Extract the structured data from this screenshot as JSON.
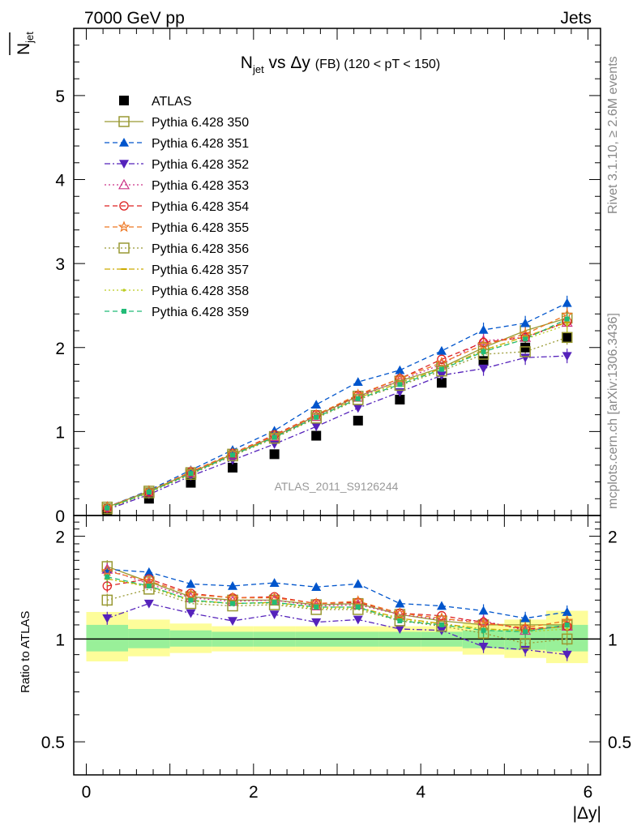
{
  "header": {
    "left": "7000 GeV pp",
    "right": "Jets"
  },
  "side_text": {
    "rivet": "Rivet 3.1.10, ≥ 2.6M events",
    "mcplots": "mcplots.cern.ch [arXiv:1306.3436]"
  },
  "chart_data": [
    {
      "type": "scatter",
      "title_main": "N",
      "title_sub": "jet",
      "title_rest": " vs Δy ",
      "title_fb": "(FB)",
      "title_range": " (120 < pT < 150)",
      "ylabel_main": "N",
      "ylabel_sub": "jet",
      "ylim": [
        0,
        5.8
      ],
      "yticks": [
        0,
        1,
        2,
        3,
        4,
        5
      ],
      "ytick_labels": [
        "0",
        "1",
        "2",
        "3",
        "4",
        "5"
      ],
      "xlim": [
        -0.15,
        6.15
      ],
      "watermark": "ATLAS_2011_S9126244",
      "x": [
        0.25,
        0.75,
        1.25,
        1.75,
        2.25,
        2.75,
        3.25,
        3.75,
        4.25,
        4.75,
        5.25,
        5.75
      ],
      "series": [
        {
          "name": "ATLAS",
          "color": "#000000",
          "marker": "square-filled",
          "line": "none",
          "values": [
            0.06,
            0.2,
            0.39,
            0.57,
            0.73,
            0.95,
            1.13,
            1.38,
            1.58,
            1.84,
            2.0,
            2.12
          ]
        },
        {
          "name": "Pythia 6.428 350",
          "color": "#999933",
          "marker": "square-open",
          "line": "solid",
          "values": [
            0.1,
            0.29,
            0.51,
            0.73,
            0.94,
            1.19,
            1.42,
            1.6,
            1.76,
            2.0,
            2.2,
            2.35
          ]
        },
        {
          "name": "Pythia 6.428 351",
          "color": "#0055cc",
          "marker": "triangle-up-filled",
          "line": "dashed",
          "values": [
            0.1,
            0.3,
            0.54,
            0.78,
            1.01,
            1.32,
            1.59,
            1.73,
            1.96,
            2.21,
            2.29,
            2.53
          ]
        },
        {
          "name": "Pythia 6.428 352",
          "color": "#5522bb",
          "marker": "triangle-down-filled",
          "line": "dashdot",
          "values": [
            0.07,
            0.25,
            0.47,
            0.66,
            0.85,
            1.06,
            1.28,
            1.47,
            1.67,
            1.75,
            1.88,
            1.9
          ]
        },
        {
          "name": "Pythia 6.428 353",
          "color": "#cc3388",
          "marker": "triangle-up-open",
          "line": "dotted",
          "values": [
            0.1,
            0.28,
            0.51,
            0.72,
            0.94,
            1.18,
            1.41,
            1.61,
            1.8,
            2.08,
            2.12,
            2.3
          ]
        },
        {
          "name": "Pythia 6.428 354",
          "color": "#dd2222",
          "marker": "circle-open",
          "line": "dashed",
          "values": [
            0.09,
            0.28,
            0.52,
            0.74,
            0.96,
            1.2,
            1.43,
            1.63,
            1.86,
            2.06,
            2.12,
            2.31
          ]
        },
        {
          "name": "Pythia 6.428 355",
          "color": "#ee7722",
          "marker": "star-open",
          "line": "dashed",
          "values": [
            0.1,
            0.29,
            0.52,
            0.74,
            0.95,
            1.2,
            1.44,
            1.63,
            1.82,
            2.03,
            2.16,
            2.39
          ]
        },
        {
          "name": "Pythia 6.428 356",
          "color": "#999933",
          "marker": "square-open",
          "line": "dotted",
          "values": [
            0.08,
            0.27,
            0.49,
            0.71,
            0.92,
            1.16,
            1.38,
            1.55,
            1.72,
            1.92,
            1.95,
            2.12
          ]
        },
        {
          "name": "Pythia 6.428 357",
          "color": "#ccaa00",
          "marker": "dash",
          "line": "dashdot",
          "values": [
            0.09,
            0.28,
            0.5,
            0.72,
            0.93,
            1.17,
            1.4,
            1.58,
            1.75,
            1.97,
            2.13,
            2.3
          ]
        },
        {
          "name": "Pythia 6.428 358",
          "color": "#bbcc22",
          "marker": "dot",
          "line": "dotted",
          "values": [
            0.09,
            0.28,
            0.5,
            0.72,
            0.93,
            1.17,
            1.4,
            1.58,
            1.74,
            1.96,
            2.1,
            2.27
          ]
        },
        {
          "name": "Pythia 6.428 359",
          "color": "#22bb77",
          "marker": "square-filled-small",
          "line": "dashed",
          "values": [
            0.09,
            0.28,
            0.5,
            0.72,
            0.93,
            1.17,
            1.39,
            1.56,
            1.74,
            1.95,
            2.1,
            2.34
          ]
        }
      ]
    },
    {
      "type": "scatter",
      "ylabel": "Ratio to ATLAS",
      "xlabel": "|Δy|",
      "ylim": [
        0.4,
        2.3
      ],
      "yscale": "log",
      "yticks": [
        0.5,
        1,
        2
      ],
      "ytick_labels": [
        "0.5",
        "1",
        "2"
      ],
      "xlim": [
        -0.15,
        6.15
      ],
      "xticks": [
        0,
        2,
        4,
        6
      ],
      "xtick_labels": [
        "0",
        "2",
        "4",
        "6"
      ],
      "band_edges": [
        0,
        0.5,
        1,
        1.5,
        2,
        2.5,
        3,
        3.5,
        4,
        4.5,
        5,
        5.5,
        6
      ],
      "band_green": [
        [
          0.92,
          1.1
        ],
        [
          0.94,
          1.07
        ],
        [
          0.95,
          1.06
        ],
        [
          0.95,
          1.05
        ],
        [
          0.95,
          1.05
        ],
        [
          0.95,
          1.05
        ],
        [
          0.95,
          1.05
        ],
        [
          0.95,
          1.05
        ],
        [
          0.95,
          1.05
        ],
        [
          0.94,
          1.06
        ],
        [
          0.93,
          1.07
        ],
        [
          0.92,
          1.1
        ]
      ],
      "band_yellow": [
        [
          0.86,
          1.2
        ],
        [
          0.89,
          1.14
        ],
        [
          0.91,
          1.11
        ],
        [
          0.92,
          1.09
        ],
        [
          0.92,
          1.09
        ],
        [
          0.92,
          1.09
        ],
        [
          0.92,
          1.09
        ],
        [
          0.92,
          1.09
        ],
        [
          0.92,
          1.09
        ],
        [
          0.9,
          1.11
        ],
        [
          0.88,
          1.14
        ],
        [
          0.85,
          1.21
        ]
      ],
      "series": [
        {
          "name": "Pythia 6.428 350",
          "values": [
            1.63,
            1.47,
            1.33,
            1.3,
            1.3,
            1.26,
            1.27,
            1.18,
            1.13,
            1.1,
            1.1,
            1.1
          ]
        },
        {
          "name": "Pythia 6.428 351",
          "values": [
            1.6,
            1.57,
            1.45,
            1.43,
            1.46,
            1.42,
            1.45,
            1.27,
            1.25,
            1.21,
            1.15,
            1.2
          ]
        },
        {
          "name": "Pythia 6.428 352",
          "values": [
            1.15,
            1.27,
            1.19,
            1.13,
            1.18,
            1.12,
            1.14,
            1.07,
            1.06,
            0.95,
            0.93,
            0.9
          ]
        },
        {
          "name": "Pythia 6.428 353",
          "values": [
            1.6,
            1.45,
            1.32,
            1.29,
            1.3,
            1.25,
            1.26,
            1.18,
            1.14,
            1.13,
            1.06,
            1.09
          ]
        },
        {
          "name": "Pythia 6.428 354",
          "values": [
            1.43,
            1.5,
            1.36,
            1.32,
            1.33,
            1.27,
            1.28,
            1.19,
            1.17,
            1.12,
            1.07,
            1.09
          ]
        },
        {
          "name": "Pythia 6.428 355",
          "values": [
            1.58,
            1.48,
            1.35,
            1.32,
            1.32,
            1.27,
            1.29,
            1.19,
            1.15,
            1.11,
            1.08,
            1.13
          ]
        },
        {
          "name": "Pythia 6.428 356",
          "values": [
            1.3,
            1.4,
            1.27,
            1.25,
            1.26,
            1.22,
            1.22,
            1.13,
            1.09,
            1.04,
            0.97,
            1.0
          ]
        },
        {
          "name": "Pythia 6.428 357",
          "values": [
            1.5,
            1.43,
            1.3,
            1.27,
            1.28,
            1.24,
            1.24,
            1.15,
            1.11,
            1.07,
            1.06,
            1.09
          ]
        },
        {
          "name": "Pythia 6.428 358",
          "values": [
            1.5,
            1.42,
            1.29,
            1.27,
            1.27,
            1.23,
            1.23,
            1.14,
            1.1,
            1.07,
            1.05,
            1.07
          ]
        },
        {
          "name": "Pythia 6.428 359",
          "values": [
            1.52,
            1.43,
            1.3,
            1.27,
            1.28,
            1.24,
            1.24,
            1.13,
            1.1,
            1.06,
            1.05,
            1.1
          ]
        }
      ]
    }
  ]
}
